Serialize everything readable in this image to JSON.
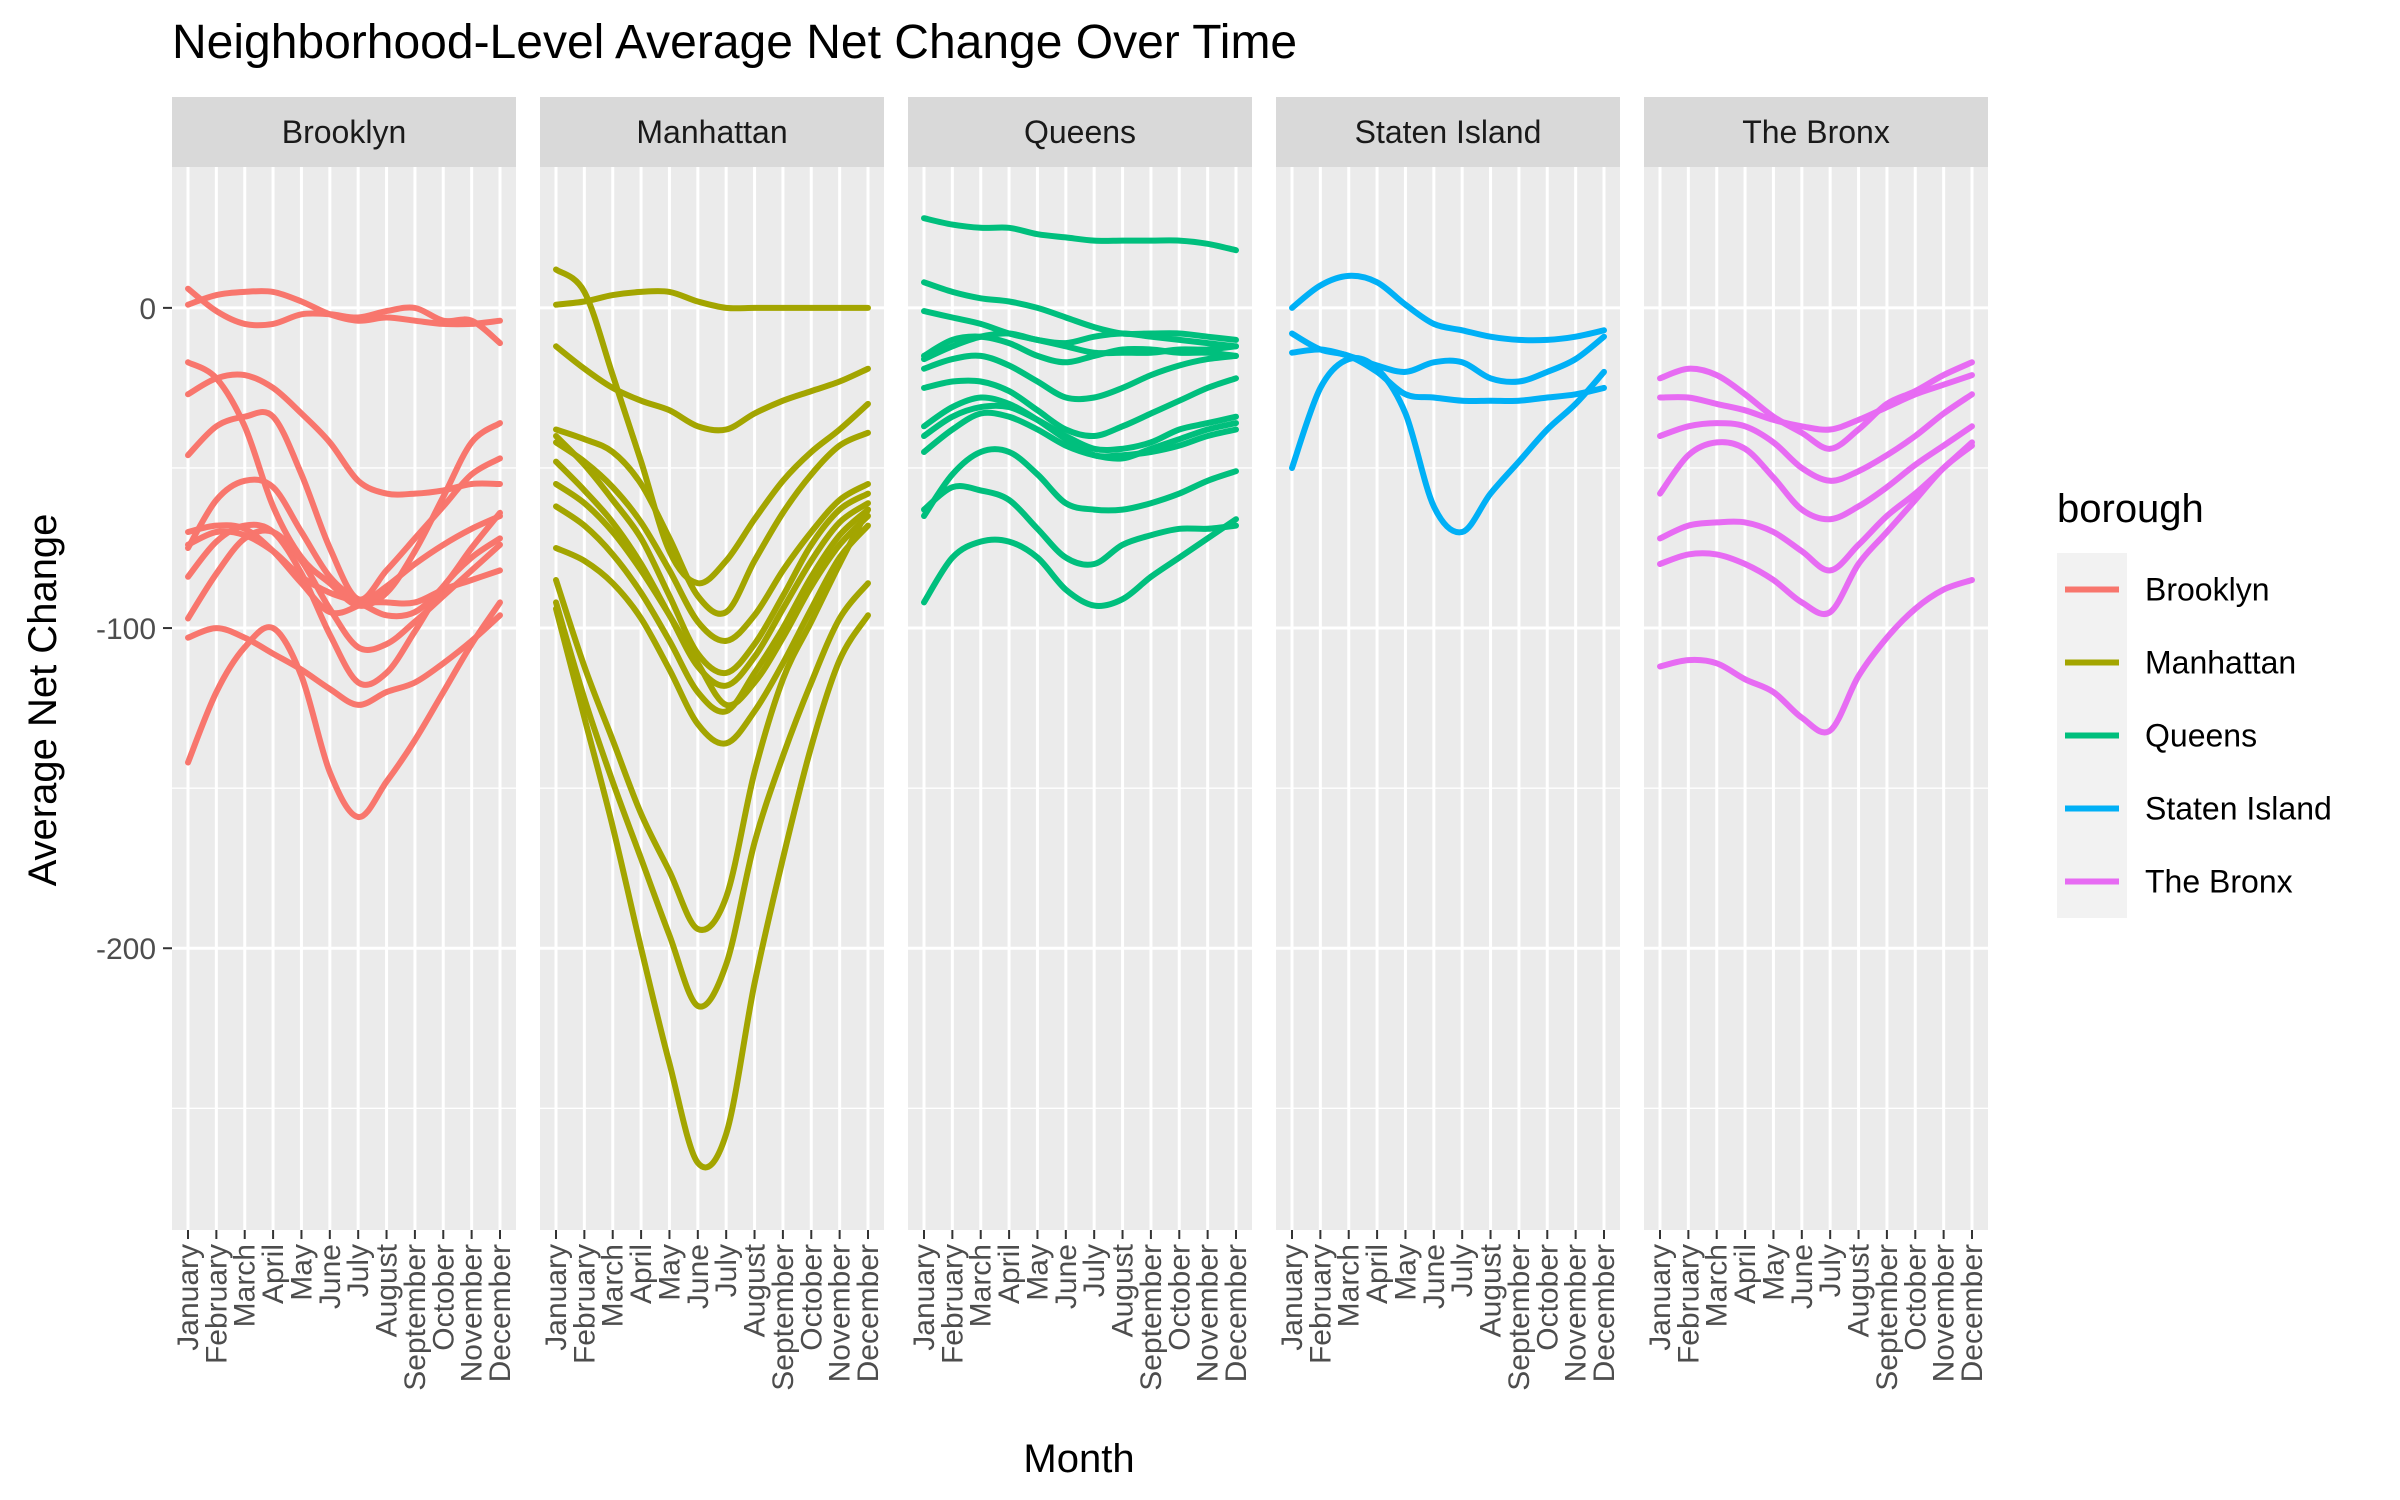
{
  "chart_data": {
    "type": "line",
    "title": "Neighborhood-Level Average Net Change Over Time",
    "xlabel": "Month",
    "ylabel": "Average Net Change",
    "categories": [
      "January",
      "February",
      "March",
      "April",
      "May",
      "June",
      "July",
      "August",
      "September",
      "October",
      "November",
      "December"
    ],
    "ylim": [
      -288,
      44
    ],
    "yticks": [
      0,
      -100,
      -200
    ],
    "ytick_labels": [
      "0",
      "-100",
      "-200"
    ],
    "grid": true,
    "facet_by": "borough",
    "legend": {
      "title": "borough",
      "position": "right"
    },
    "panels": [
      {
        "name": "Brooklyn",
        "color": "#F8766D",
        "series": [
          {
            "values": [
              1,
              4,
              5,
              5,
              2,
              -2,
              -4,
              -3,
              -4,
              -5,
              -5,
              -4
            ]
          },
          {
            "values": [
              6,
              -1,
              -5,
              -5,
              -2,
              -2,
              -3,
              -1,
              0,
              -4,
              -4,
              -11
            ]
          },
          {
            "values": [
              -27,
              -22,
              -21,
              -25,
              -33,
              -42,
              -54,
              -58,
              -58,
              -57,
              -55,
              -55
            ]
          },
          {
            "values": [
              -46,
              -37,
              -34,
              -34,
              -52,
              -75,
              -91,
              -82,
              -72,
              -62,
              -52,
              -47
            ]
          },
          {
            "values": [
              -17,
              -22,
              -37,
              -62,
              -78,
              -86,
              -93,
              -89,
              -76,
              -59,
              -42,
              -36
            ]
          },
          {
            "values": [
              -75,
              -60,
              -54,
              -56,
              -70,
              -84,
              -91,
              -92,
              -92,
              -88,
              -85,
              -82
            ]
          },
          {
            "values": [
              -84,
              -73,
              -68,
              -70,
              -83,
              -102,
              -117,
              -114,
              -101,
              -87,
              -78,
              -72
            ]
          },
          {
            "values": [
              -70,
              -68,
              -69,
              -76,
              -86,
              -95,
              -93,
              -87,
              -80,
              -74,
              -69,
              -65
            ]
          },
          {
            "values": [
              -74,
              -70,
              -71,
              -76,
              -84,
              -89,
              -92,
              -96,
              -95,
              -87,
              -75,
              -64
            ]
          },
          {
            "values": [
              -97,
              -83,
              -72,
              -70,
              -79,
              -94,
              -106,
              -105,
              -98,
              -90,
              -82,
              -74
            ]
          },
          {
            "values": [
              -103,
              -100,
              -103,
              -108,
              -113,
              -119,
              -124,
              -120,
              -117,
              -111,
              -104,
              -96
            ]
          },
          {
            "values": [
              -142,
              -120,
              -106,
              -100,
              -115,
              -145,
              -159,
              -148,
              -135,
              -120,
              -105,
              -92
            ]
          }
        ]
      },
      {
        "name": "Manhattan",
        "color": "#A3A500",
        "series": [
          {
            "values": [
              1,
              2,
              4,
              5,
              5,
              2,
              0,
              0,
              0,
              0,
              0,
              0
            ]
          },
          {
            "values": [
              -12,
              -19,
              -25,
              -29,
              -32,
              -37,
              -38,
              -33,
              -29,
              -26,
              -23,
              -19
            ]
          },
          {
            "values": [
              12,
              5,
              -21,
              -48,
              -76,
              -86,
              -79,
              -66,
              -54,
              -45,
              -38,
              -30
            ]
          },
          {
            "values": [
              -38,
              -41,
              -45,
              -55,
              -72,
              -90,
              -95,
              -79,
              -64,
              -52,
              -43,
              -39
            ]
          },
          {
            "values": [
              -42,
              -48,
              -56,
              -67,
              -82,
              -98,
              -104,
              -96,
              -82,
              -70,
              -60,
              -55
            ]
          },
          {
            "values": [
              -40,
              -49,
              -60,
              -72,
              -90,
              -108,
              -114,
              -105,
              -90,
              -74,
              -63,
              -58
            ]
          },
          {
            "values": [
              -48,
              -57,
              -67,
              -80,
              -96,
              -112,
              -118,
              -109,
              -94,
              -79,
              -67,
              -61
            ]
          },
          {
            "values": [
              -55,
              -61,
              -70,
              -82,
              -96,
              -111,
              -124,
              -117,
              -103,
              -87,
              -74,
              -65
            ]
          },
          {
            "values": [
              -62,
              -68,
              -77,
              -89,
              -104,
              -120,
              -126,
              -114,
              -100,
              -84,
              -71,
              -63
            ]
          },
          {
            "values": [
              -75,
              -79,
              -86,
              -97,
              -113,
              -130,
              -136,
              -126,
              -111,
              -94,
              -78,
              -68
            ]
          },
          {
            "values": [
              -85,
              -112,
              -135,
              -158,
              -176,
              -194,
              -184,
              -145,
              -116,
              -98,
              -80,
              -63
            ]
          },
          {
            "values": [
              -92,
              -122,
              -148,
              -172,
              -196,
              -218,
              -205,
              -167,
              -140,
              -117,
              -97,
              -86
            ]
          },
          {
            "values": [
              -94,
              -128,
              -162,
              -200,
              -236,
              -267,
              -258,
              -211,
              -172,
              -137,
              -110,
              -96
            ]
          }
        ]
      },
      {
        "name": "Queens",
        "color": "#00BF7D",
        "series": [
          {
            "values": [
              28,
              26,
              25,
              25,
              23,
              22,
              21,
              21,
              21,
              21,
              20,
              18
            ]
          },
          {
            "values": [
              8,
              5,
              3,
              2,
              0,
              -3,
              -6,
              -8,
              -8,
              -8,
              -9,
              -10
            ]
          },
          {
            "values": [
              -1,
              -3,
              -5,
              -8,
              -10,
              -12,
              -14,
              -14,
              -14,
              -13,
              -13,
              -12
            ]
          },
          {
            "values": [
              -16,
              -12,
              -9,
              -8,
              -10,
              -11,
              -9,
              -8,
              -9,
              -10,
              -11,
              -12
            ]
          },
          {
            "values": [
              -15,
              -10,
              -9,
              -11,
              -15,
              -17,
              -15,
              -13,
              -13,
              -14,
              -14,
              -15
            ]
          },
          {
            "values": [
              -19,
              -16,
              -15,
              -18,
              -23,
              -28,
              -28,
              -25,
              -21,
              -18,
              -16,
              -15
            ]
          },
          {
            "values": [
              -25,
              -23,
              -23,
              -26,
              -32,
              -38,
              -40,
              -37,
              -33,
              -29,
              -25,
              -22
            ]
          },
          {
            "values": [
              -40,
              -34,
              -31,
              -31,
              -35,
              -40,
              -44,
              -44,
              -42,
              -38,
              -36,
              -34
            ]
          },
          {
            "values": [
              -37,
              -31,
              -28,
              -30,
              -35,
              -41,
              -46,
              -46,
              -45,
              -43,
              -40,
              -38
            ]
          },
          {
            "values": [
              -45,
              -38,
              -33,
              -34,
              -38,
              -43,
              -46,
              -47,
              -44,
              -41,
              -38,
              -36
            ]
          },
          {
            "values": [
              -65,
              -52,
              -45,
              -45,
              -52,
              -61,
              -63,
              -63,
              -61,
              -58,
              -54,
              -51
            ]
          },
          {
            "values": [
              -63,
              -56,
              -57,
              -60,
              -69,
              -78,
              -80,
              -74,
              -71,
              -69,
              -69,
              -68
            ]
          },
          {
            "values": [
              -92,
              -78,
              -73,
              -73,
              -78,
              -88,
              -93,
              -91,
              -84,
              -78,
              -72,
              -66
            ]
          }
        ]
      },
      {
        "name": "Staten Island",
        "color": "#00B0F6",
        "series": [
          {
            "values": [
              0,
              7,
              10,
              8,
              1,
              -5,
              -7,
              -9,
              -10,
              -10,
              -9,
              -7
            ]
          },
          {
            "values": [
              -8,
              -13,
              -15,
              -20,
              -27,
              -28,
              -29,
              -29,
              -29,
              -28,
              -27,
              -25
            ]
          },
          {
            "values": [
              -14,
              -13,
              -15,
              -18,
              -20,
              -17,
              -17,
              -22,
              -23,
              -20,
              -16,
              -9
            ]
          },
          {
            "values": [
              -50,
              -25,
              -16,
              -19,
              -33,
              -62,
              -70,
              -58,
              -48,
              -38,
              -30,
              -20
            ]
          }
        ]
      },
      {
        "name": "The Bronx",
        "color": "#E76BF3",
        "series": [
          {
            "values": [
              -22,
              -19,
              -21,
              -27,
              -34,
              -39,
              -44,
              -38,
              -30,
              -26,
              -21,
              -17
            ]
          },
          {
            "values": [
              -28,
              -28,
              -30,
              -32,
              -35,
              -37,
              -38,
              -35,
              -31,
              -27,
              -24,
              -21
            ]
          },
          {
            "values": [
              -40,
              -37,
              -36,
              -37,
              -42,
              -50,
              -54,
              -51,
              -46,
              -40,
              -33,
              -27
            ]
          },
          {
            "values": [
              -58,
              -46,
              -42,
              -44,
              -53,
              -63,
              -66,
              -62,
              -56,
              -49,
              -43,
              -37
            ]
          },
          {
            "values": [
              -72,
              -68,
              -67,
              -67,
              -70,
              -76,
              -82,
              -74,
              -65,
              -58,
              -50,
              -42
            ]
          },
          {
            "values": [
              -80,
              -77,
              -77,
              -80,
              -85,
              -92,
              -95,
              -80,
              -70,
              -60,
              -50,
              -43
            ]
          },
          {
            "values": [
              -112,
              -110,
              -111,
              -116,
              -120,
              -128,
              -132,
              -115,
              -103,
              -94,
              -88,
              -85
            ]
          }
        ]
      }
    ]
  }
}
